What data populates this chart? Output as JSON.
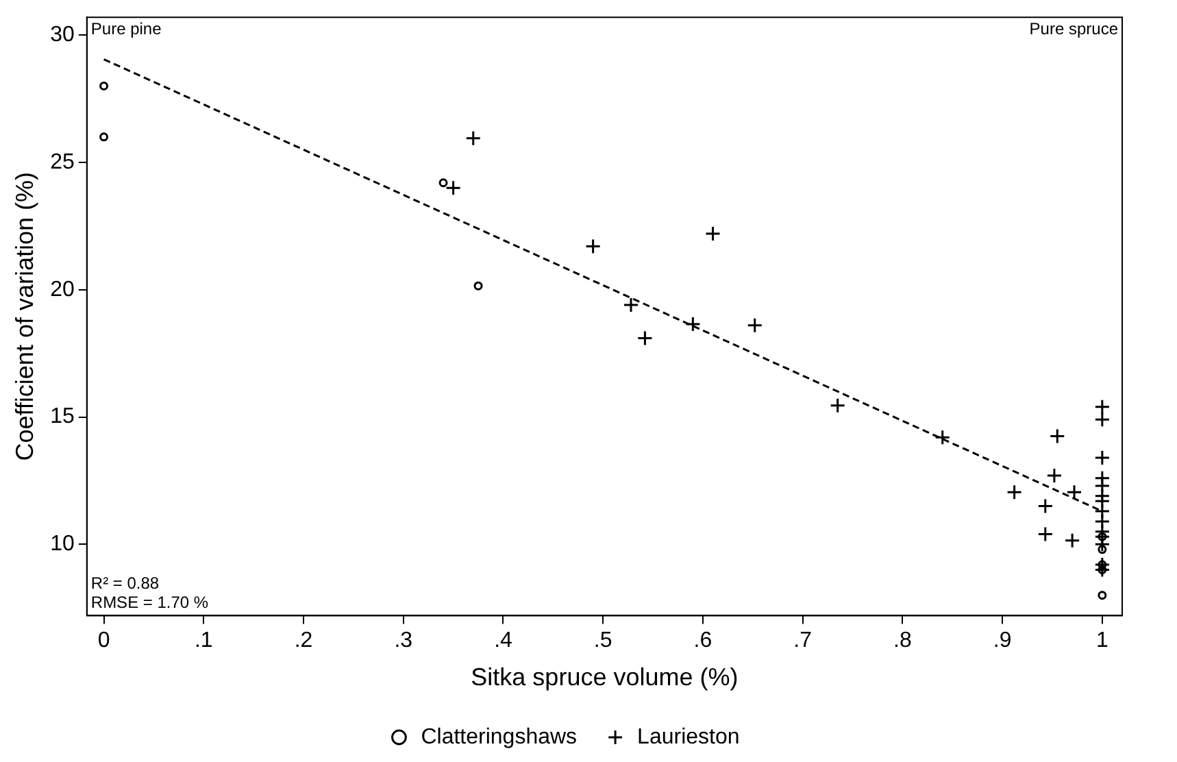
{
  "chart_data": {
    "type": "scatter",
    "xlabel": "Sitka spruce volume (%)",
    "ylabel": "Coefficient of variation (%)",
    "xlim": [
      -0.017,
      1.02
    ],
    "ylim": [
      7.2,
      30.7
    ],
    "xticks": [
      {
        "value": 0,
        "label": "0"
      },
      {
        "value": 0.1,
        "label": ".1"
      },
      {
        "value": 0.2,
        "label": ".2"
      },
      {
        "value": 0.3,
        "label": ".3"
      },
      {
        "value": 0.4,
        "label": ".4"
      },
      {
        "value": 0.5,
        "label": ".5"
      },
      {
        "value": 0.6,
        "label": ".6"
      },
      {
        "value": 0.7,
        "label": ".7"
      },
      {
        "value": 0.8,
        "label": ".8"
      },
      {
        "value": 0.9,
        "label": ".9"
      },
      {
        "value": 1,
        "label": "1"
      }
    ],
    "yticks": [
      10,
      15,
      20,
      25,
      30
    ],
    "grid": false,
    "legend": "bottom",
    "annotations": [
      "Pure pine",
      "Pure spruce",
      "R² = 0.88",
      "RMSE = 1.70 %"
    ],
    "series": [
      {
        "name": "Clatteringshaws",
        "color": "#000000",
        "marker": "circle",
        "x": [
          0,
          0,
          0.34,
          0.375,
          1,
          1,
          1,
          1,
          1
        ],
        "values": [
          28,
          26,
          24.2,
          20.15,
          8.0,
          9.0,
          9.2,
          9.8,
          10.3
        ]
      },
      {
        "name": "Laurieston",
        "color": "#000000",
        "marker": "cross",
        "x": [
          0.35,
          0.37,
          0.49,
          0.528,
          0.542,
          0.59,
          0.61,
          0.652,
          0.735,
          0.84,
          0.912,
          0.943,
          0.943,
          0.952,
          0.955,
          0.97,
          0.972,
          1,
          1,
          1,
          1,
          1,
          1,
          1,
          1,
          1,
          1,
          1,
          1,
          1,
          1
        ],
        "values": [
          24,
          25.95,
          21.7,
          19.4,
          18.1,
          18.65,
          22.2,
          18.6,
          15.45,
          14.2,
          12.05,
          11.5,
          10.4,
          12.7,
          14.25,
          10.15,
          12.05,
          15.4,
          14.9,
          13.4,
          12.6,
          12.3,
          11.9,
          11.7,
          11.3,
          10.9,
          10.5,
          10.3,
          10.0,
          9.2,
          9.0
        ]
      },
      {
        "type": "line",
        "color": "#000000",
        "line_style": "dashed",
        "marker": "none",
        "x": [
          0,
          1
        ],
        "values": [
          29.05,
          11.3
        ]
      }
    ]
  }
}
